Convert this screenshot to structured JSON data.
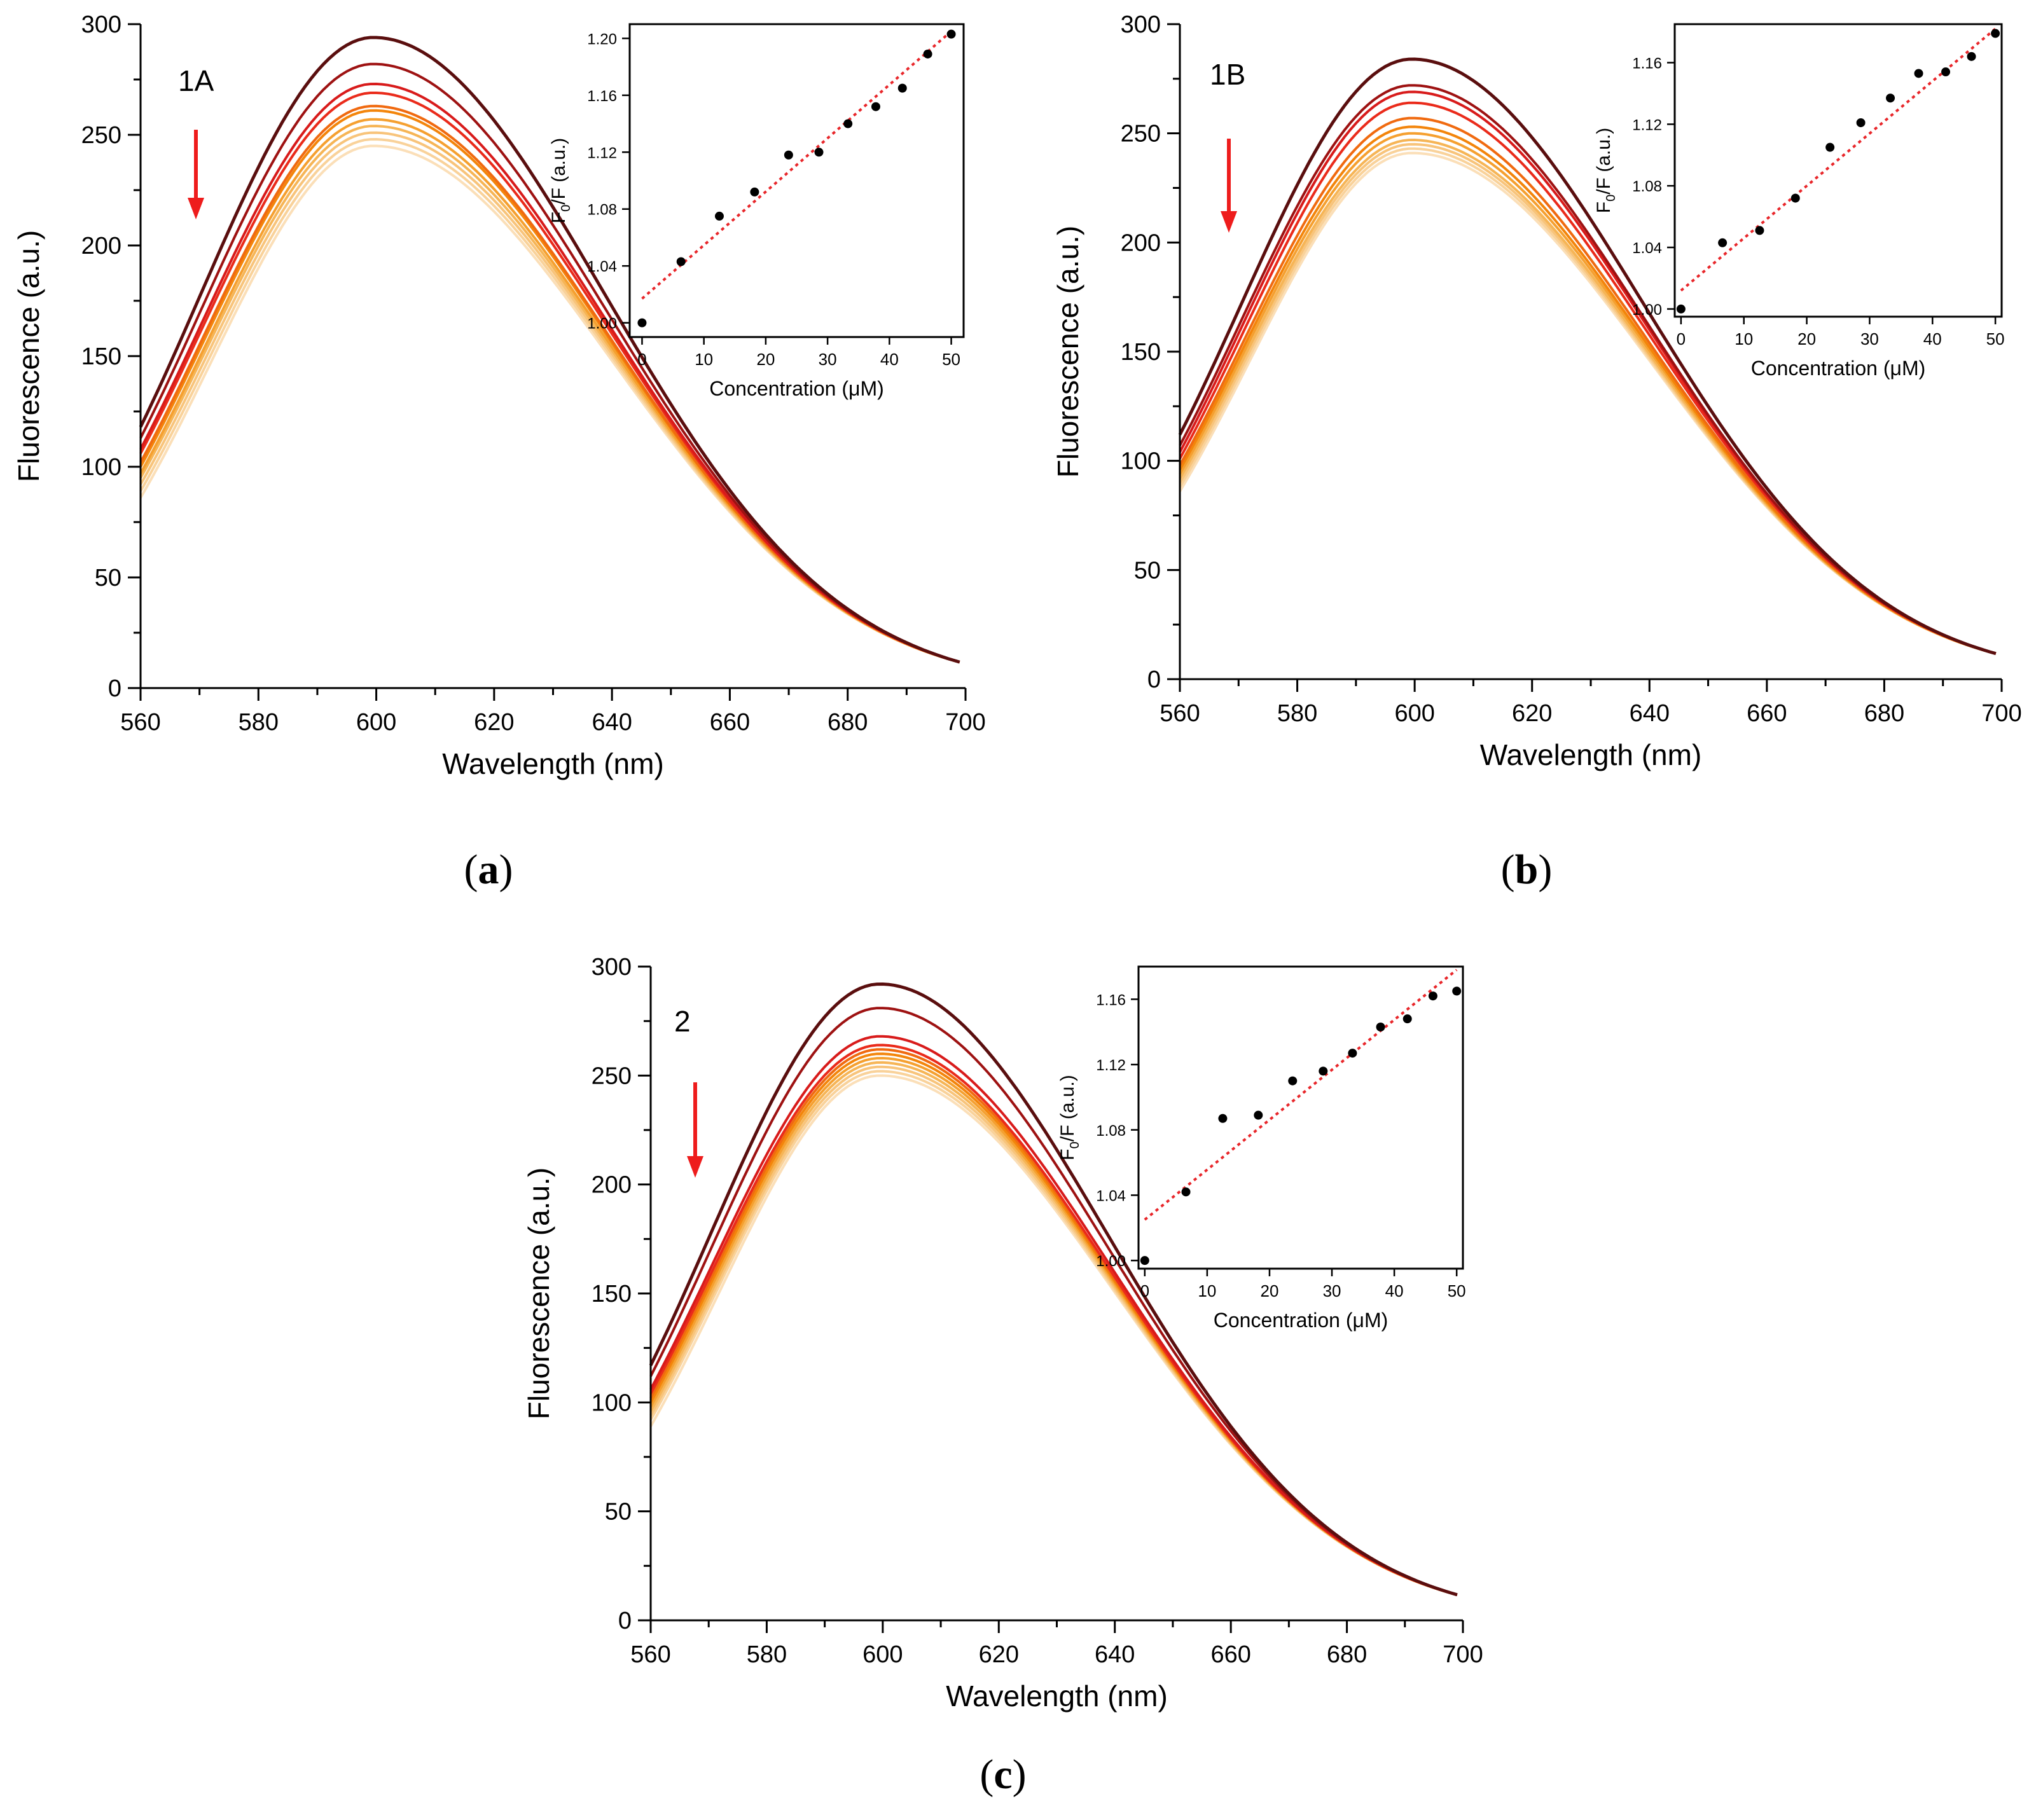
{
  "colors": {
    "spectra": [
      "#5a0e0e",
      "#9e1212",
      "#d81b1b",
      "#ea2b1b",
      "#f06a10",
      "#f3850b",
      "#f5a030",
      "#f6b556",
      "#f8c47b",
      "#f9d29a",
      "#fbdfb8"
    ],
    "arrow": "#ee1c1c",
    "fit": "#e8262a",
    "points": "#000000"
  },
  "chart_data": [
    {
      "panel": "a",
      "caption": "(a)",
      "type": "line",
      "label": "1A",
      "xlabel": "Wavelength (nm)",
      "ylabel": "Fluorescence (a.u.)",
      "xlim": [
        560,
        700
      ],
      "ylim": [
        0,
        300
      ],
      "xticks": [
        560,
        580,
        600,
        620,
        640,
        660,
        680,
        700
      ],
      "yticks": [
        0,
        50,
        100,
        150,
        200,
        250,
        300
      ],
      "peaks": [
        294,
        282,
        273,
        269,
        263,
        261,
        257,
        254,
        251,
        248,
        245
      ],
      "starts": [
        118,
        113,
        108,
        106,
        102,
        100,
        97,
        95,
        92,
        89,
        86
      ],
      "end_value": 11,
      "inset": {
        "type": "scatter",
        "xlabel": "Concentration (μM)",
        "ylabel_main": "F",
        "ylabel_sub": "0",
        "ylabel_rest": "/F (a.u.)",
        "xlim": [
          -2,
          52
        ],
        "ylim": [
          0.99,
          1.21
        ],
        "xticks": [
          0,
          10,
          20,
          30,
          40,
          50
        ],
        "yticks": [
          1.0,
          1.04,
          1.08,
          1.12,
          1.16,
          1.2
        ],
        "x": [
          0,
          6.3,
          12.5,
          18.2,
          23.7,
          28.6,
          33.3,
          37.8,
          42.1,
          46.2,
          50.0
        ],
        "y": [
          1.0,
          1.043,
          1.075,
          1.092,
          1.118,
          1.12,
          1.14,
          1.152,
          1.165,
          1.189,
          1.203
        ],
        "fit": {
          "x": [
            0,
            50
          ],
          "y": [
            1.017,
            1.205
          ]
        }
      }
    },
    {
      "panel": "b",
      "caption": "(b)",
      "type": "line",
      "label": "1B",
      "xlabel": "Wavelength (nm)",
      "ylabel": "Fluorescence (a.u.)",
      "xlim": [
        560,
        700
      ],
      "ylim": [
        0,
        300
      ],
      "xticks": [
        560,
        580,
        600,
        620,
        640,
        660,
        680,
        700
      ],
      "yticks": [
        0,
        50,
        100,
        150,
        200,
        250,
        300
      ],
      "peaks": [
        284,
        272,
        269,
        264,
        257,
        253,
        250,
        247,
        245,
        243,
        241
      ],
      "starts": [
        112,
        107,
        104,
        101,
        98,
        96,
        94,
        92,
        90,
        88,
        86
      ],
      "end_value": 11,
      "inset": {
        "type": "scatter",
        "xlabel": "Concentration (μM)",
        "ylabel_main": "F",
        "ylabel_sub": "0",
        "ylabel_rest": "/F (a.u.)",
        "xlim": [
          -1,
          51
        ],
        "ylim": [
          0.995,
          1.185
        ],
        "xticks": [
          0,
          10,
          20,
          30,
          40,
          50
        ],
        "yticks": [
          1.0,
          1.04,
          1.08,
          1.12,
          1.16
        ],
        "x": [
          0,
          6.6,
          12.5,
          18.2,
          23.7,
          28.6,
          33.3,
          37.8,
          42.1,
          46.2,
          50.0
        ],
        "y": [
          1.0,
          1.043,
          1.051,
          1.072,
          1.105,
          1.121,
          1.137,
          1.153,
          1.154,
          1.164,
          1.179
        ],
        "fit": {
          "x": [
            0,
            50
          ],
          "y": [
            1.012,
            1.182
          ]
        }
      }
    },
    {
      "panel": "c",
      "caption": "(c)",
      "type": "line",
      "label": "2",
      "xlabel": "Wavelength (nm)",
      "ylabel": "Fluorescence (a.u.)",
      "xlim": [
        560,
        700
      ],
      "ylim": [
        0,
        300
      ],
      "xticks": [
        560,
        580,
        600,
        620,
        640,
        660,
        680,
        700
      ],
      "yticks": [
        0,
        50,
        100,
        150,
        200,
        250,
        300
      ],
      "peaks": [
        292,
        281,
        268,
        264,
        262,
        260,
        258,
        256,
        254,
        252,
        250
      ],
      "starts": [
        117,
        112,
        106,
        104,
        102,
        100,
        98,
        96,
        94,
        92,
        89
      ],
      "end_value": 11,
      "inset": {
        "type": "scatter",
        "xlabel": "Concentration (μM)",
        "ylabel_main": "F",
        "ylabel_sub": "0",
        "ylabel_rest": "/F (a.u.)",
        "xlim": [
          -1,
          51
        ],
        "ylim": [
          0.995,
          1.18
        ],
        "xticks": [
          0,
          10,
          20,
          30,
          40,
          50
        ],
        "yticks": [
          1.0,
          1.04,
          1.08,
          1.12,
          1.16
        ],
        "x": [
          0,
          6.6,
          12.5,
          18.2,
          23.7,
          28.6,
          33.3,
          37.8,
          42.1,
          46.2,
          50.0
        ],
        "y": [
          1.0,
          1.042,
          1.087,
          1.089,
          1.11,
          1.116,
          1.127,
          1.143,
          1.148,
          1.162,
          1.165
        ],
        "fit": {
          "x": [
            0,
            50
          ],
          "y": [
            1.025,
            1.178
          ]
        }
      }
    }
  ]
}
